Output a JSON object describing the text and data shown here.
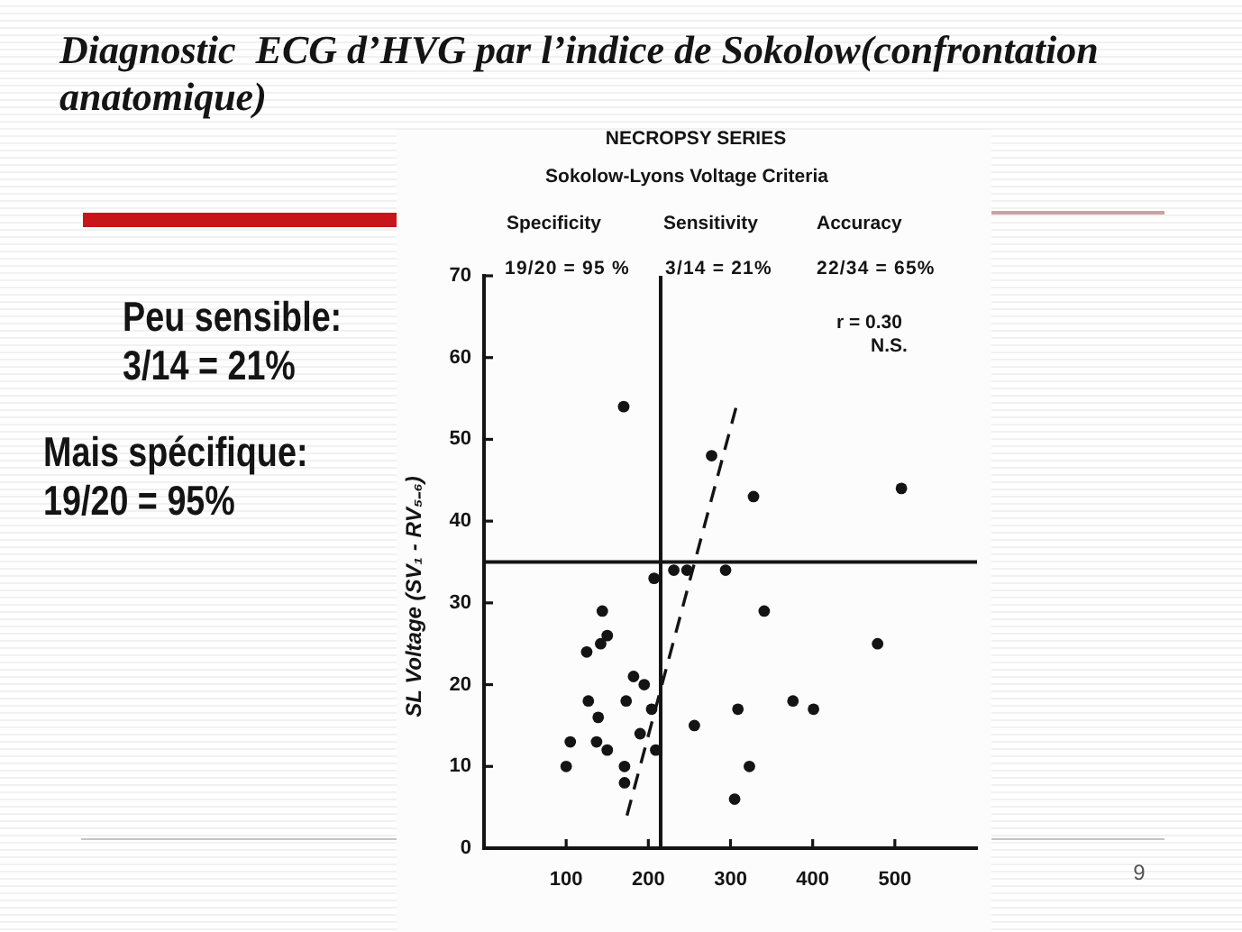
{
  "chart_data": {
    "type": "scatter",
    "title": "Diagnostic  ECG d’HVG par l’indice de Sokolow(confrontation anatomique)",
    "subtitle": "NECROPSY SERIES",
    "ylabel": "SL Voltage (SV₁ - RV₅₋₆)",
    "annotations": [
      "Sokolow-Lyons Voltage Criteria",
      "Specificity",
      "Sensitivity",
      "Accuracy",
      "19/20 = 95 %",
      "3/14 = 21%",
      "22/34 = 65%",
      "r = 0.30",
      "N.S.",
      "Peu sensible:",
      "3/14 = 21%",
      "Mais spécifique:",
      "19/20 = 95%",
      "9"
    ],
    "series": [
      {
        "color": "#141414",
        "marker": "circle",
        "x": [
          170,
          277,
          328,
          508,
          207,
          231,
          247,
          294,
          341,
          144,
          150,
          142,
          125,
          479,
          182,
          195,
          127,
          173,
          204,
          309,
          376,
          401,
          139,
          256,
          190,
          105,
          137,
          150,
          209,
          323,
          100,
          171,
          171,
          305
        ],
        "values": [
          54,
          48,
          43,
          44,
          33,
          34,
          34,
          34,
          29,
          29,
          26,
          25,
          24,
          25,
          21,
          20,
          18,
          18,
          17,
          17,
          18,
          17,
          16,
          15,
          14,
          13,
          13,
          12,
          12,
          10,
          10,
          10,
          8,
          6
        ]
      },
      {
        "type": "line",
        "color": "#141414",
        "marker": "none",
        "line_style": "dashed",
        "x": [
          174,
          307
        ],
        "values": [
          4,
          54
        ]
      }
    ],
    "xlim": [
      0,
      600
    ],
    "xticks": [
      100,
      200,
      300,
      400,
      500
    ],
    "ylim": [
      0,
      70
    ],
    "yticks": [
      0,
      10,
      20,
      30,
      40,
      50,
      60,
      70
    ],
    "ref_lines": [
      {
        "axis": "x",
        "value": 215
      },
      {
        "axis": "y",
        "value": 35
      }
    ]
  }
}
